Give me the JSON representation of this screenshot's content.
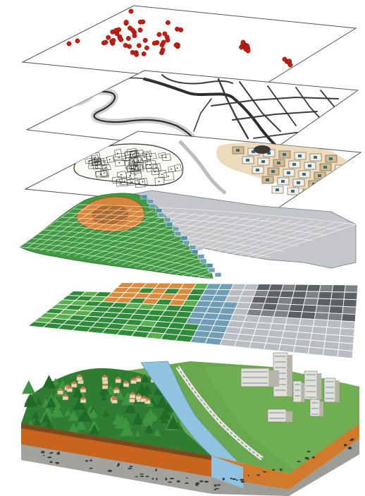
{
  "layers": [
    {
      "name": "point-data-layer",
      "theme": "points"
    },
    {
      "name": "network-layer",
      "theme": "roads-and-rivers"
    },
    {
      "name": "parcel-layer",
      "theme": "parcels-and-buildings"
    },
    {
      "name": "elevation-layer",
      "theme": "terrain-grid"
    },
    {
      "name": "land-cover-layer",
      "theme": "land-cover-grid"
    },
    {
      "name": "real-world-layer",
      "theme": "landscape-block"
    }
  ],
  "colors": {
    "point": "#c41e14",
    "road": "#3a3a3a",
    "forest": "#2f8a3a",
    "forest_light": "#58b04c",
    "orange": "#d98a3a",
    "grey_cell": "#b9bcc0",
    "dark_cell": "#5c5f63",
    "blue_cell": "#6f9db5",
    "water": "#8fc3df",
    "soil": "#c8641e",
    "rock": "#9a9a96",
    "beige": "#e9d6b0"
  }
}
